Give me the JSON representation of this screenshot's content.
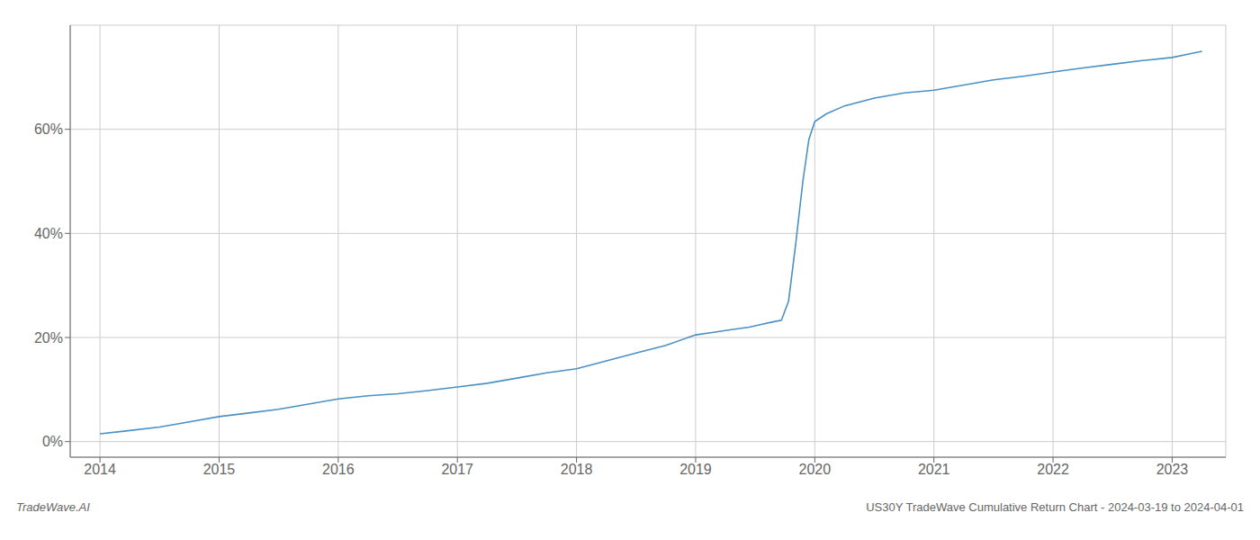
{
  "chart_data": {
    "type": "line",
    "title": "US30Y TradeWave Cumulative Return Chart - 2024-03-19 to 2024-04-01",
    "annotations": [
      "TradeWave.AI"
    ],
    "x": [
      2014.0,
      2014.2,
      2014.5,
      2014.75,
      2015.0,
      2015.25,
      2015.5,
      2015.75,
      2016.0,
      2016.25,
      2016.5,
      2016.75,
      2017.0,
      2017.25,
      2017.5,
      2017.75,
      2018.0,
      2018.25,
      2018.5,
      2018.75,
      2019.0,
      2019.15,
      2019.3,
      2019.45,
      2019.55,
      2019.65,
      2019.72,
      2019.78,
      2019.84,
      2019.9,
      2019.95,
      2020.0,
      2020.1,
      2020.25,
      2020.5,
      2020.75,
      2021.0,
      2021.25,
      2021.5,
      2021.75,
      2022.0,
      2022.25,
      2022.5,
      2022.75,
      2023.0,
      2023.15,
      2023.25
    ],
    "values": [
      1.5,
      2.0,
      2.8,
      3.8,
      4.8,
      5.5,
      6.2,
      7.2,
      8.2,
      8.8,
      9.2,
      9.8,
      10.5,
      11.2,
      12.2,
      13.2,
      14.0,
      15.5,
      17.0,
      18.5,
      20.5,
      21.0,
      21.5,
      22.0,
      22.5,
      23.0,
      23.3,
      27.0,
      38.0,
      50.0,
      58.0,
      61.5,
      63.0,
      64.5,
      66.0,
      67.0,
      67.5,
      68.5,
      69.5,
      70.2,
      71.0,
      71.8,
      72.5,
      73.2,
      73.8,
      74.5,
      75.0
    ],
    "color": "#4a90c4",
    "xlim": [
      2013.75,
      2023.45
    ],
    "ylim": [
      -3,
      80
    ],
    "xticks": [
      2014,
      2015,
      2016,
      2017,
      2018,
      2019,
      2020,
      2021,
      2022,
      2023
    ],
    "yticks": [
      {
        "value": 0,
        "label": "0%"
      },
      {
        "value": 20,
        "label": "20%"
      },
      {
        "value": 40,
        "label": "40%"
      },
      {
        "value": 60,
        "label": "60%"
      }
    ],
    "grid": true
  }
}
